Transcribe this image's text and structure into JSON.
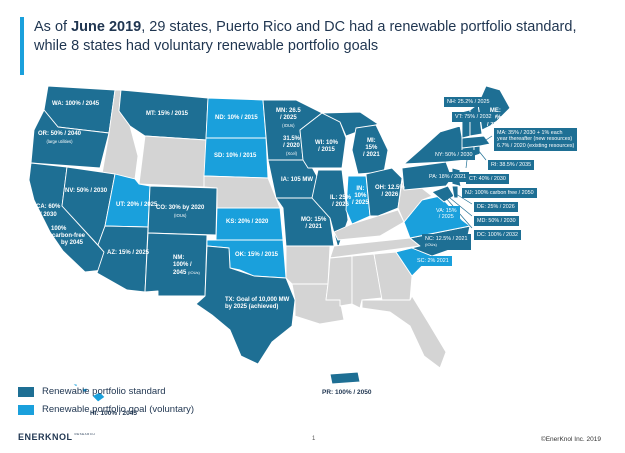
{
  "title": {
    "line1_pre": "As of ",
    "line1_bold": "June 2019",
    "line1_post": ", 29 states, Puerto Rico and DC had a renewable portfolio standard,",
    "line2": "while 8 states had voluntary renewable portfolio goals"
  },
  "colors": {
    "standard": "#1e6f94",
    "goal": "#1aa0dc",
    "none": "#d4d4d4"
  },
  "states": {
    "WA": "WA: 100% / 2045",
    "OR": "OR: 50% / 2040",
    "OR_note": "(large utilities)",
    "CA1": "CA: 60%",
    "CA2": "/ 2030",
    "CA3": "100%",
    "CA4": "carbon-free",
    "CA5": "by 2045",
    "NV": "NV: 50% / 2030",
    "MT": "MT: 15% / 2015",
    "UT": "UT: 20% / 2025",
    "AZ": "AZ: 15% / 2025",
    "CO": "CO: 30% by 2020",
    "CO_note": "(IOUs)",
    "NM1": "NM:",
    "NM2": "100% /",
    "NM3": "2045",
    "NM_note": "(IOUs)",
    "ND": "ND: 10% / 2015",
    "SD": "SD: 10% / 2015",
    "KS": "KS: 20% / 2020",
    "OK": "OK: 15% / 2015",
    "TX1": "TX: Goal of 10,000 MW",
    "TX2": "by 2025 (achieved)",
    "MN1": "MN: 26.5",
    "MN2": "/ 2025",
    "MN_note1": "(IOUs)",
    "MN3": "31.5%",
    "MN4": "/ 2020",
    "MN_note2": "(Xcel)",
    "IA": "IA: 105 MW",
    "WI1": "WI: 10%",
    "WI2": "/ 2015",
    "MO1": "MO: 15%",
    "MO2": "/ 2021",
    "IL1": "IL: 25%",
    "IL2": "/ 2026",
    "MI1": "MI:",
    "MI2": "15%",
    "MI3": "/ 2021",
    "IN1": "IN:",
    "IN2": "10%",
    "IN3": "/ 2025",
    "OH1": "OH: 12.5%",
    "OH2": "/ 2026",
    "HI": "HI: 100% / 2045",
    "PR": "PR: 100% / 2050",
    "ME1": "ME:",
    "ME2": "40%",
    "ME3": "/ 2017"
  },
  "callouts": {
    "NH": "NH: 25.2% / 2025",
    "VT": "VT: 75% / 2032",
    "MA1": "MA: 35% / 2030 + 1% each",
    "MA2": "year thereafter  (new resources)",
    "MA3": "6.7% / 2020 (existing resources)",
    "RI": "RI: 38.5% / 2035",
    "NY": "NY: 50% / 2030",
    "CT": "CT: 40% / 2030",
    "PA": "PA: 18% / 2021",
    "NJ": "NJ: 100% carbon free / 2050",
    "DE": "DE: 25% / 2026",
    "MD": "MD: 50% / 2030",
    "DC": "DC: 100% / 2032",
    "VA1": "VA: 15%",
    "VA2": "/ 2025",
    "NC1": "NC: 12.5% / 2021",
    "NC2": "(IOUs)",
    "SC": "SC: 2% 2021"
  },
  "legend": {
    "standard": "Renewable portfolio standard",
    "goal": "Renewable portfolio goal (voluntary)"
  },
  "footer": {
    "logo": "ENERKNOL",
    "logo_sub": "RESEARCH",
    "page": "1",
    "copyright": "©EnerKnol Inc. 2019"
  }
}
